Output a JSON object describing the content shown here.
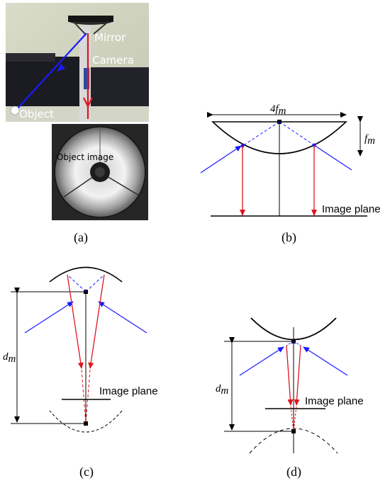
{
  "panel_a": {
    "photo_top": {
      "mirror_label": "Mirror",
      "camera_label": "Camera",
      "object_label": "Object"
    },
    "photo_bottom": {
      "object_image_label": "Object image"
    },
    "caption": "(a)"
  },
  "panel_b": {
    "width_label": "4f",
    "width_sub": "m",
    "focal_label": "f",
    "focal_sub": "m",
    "image_plane_label": "Image plane",
    "caption": "(b)"
  },
  "panel_c": {
    "distance_label": "d",
    "distance_sub": "m",
    "image_plane_label": "Image plane",
    "caption": "(c)"
  },
  "panel_d": {
    "distance_label": "d",
    "distance_sub": "m",
    "image_plane_label": "Image plane",
    "caption": "(d)"
  },
  "colors": {
    "ray_blue": "#1a1aff",
    "ray_red": "#e0141e",
    "black": "#000000"
  }
}
